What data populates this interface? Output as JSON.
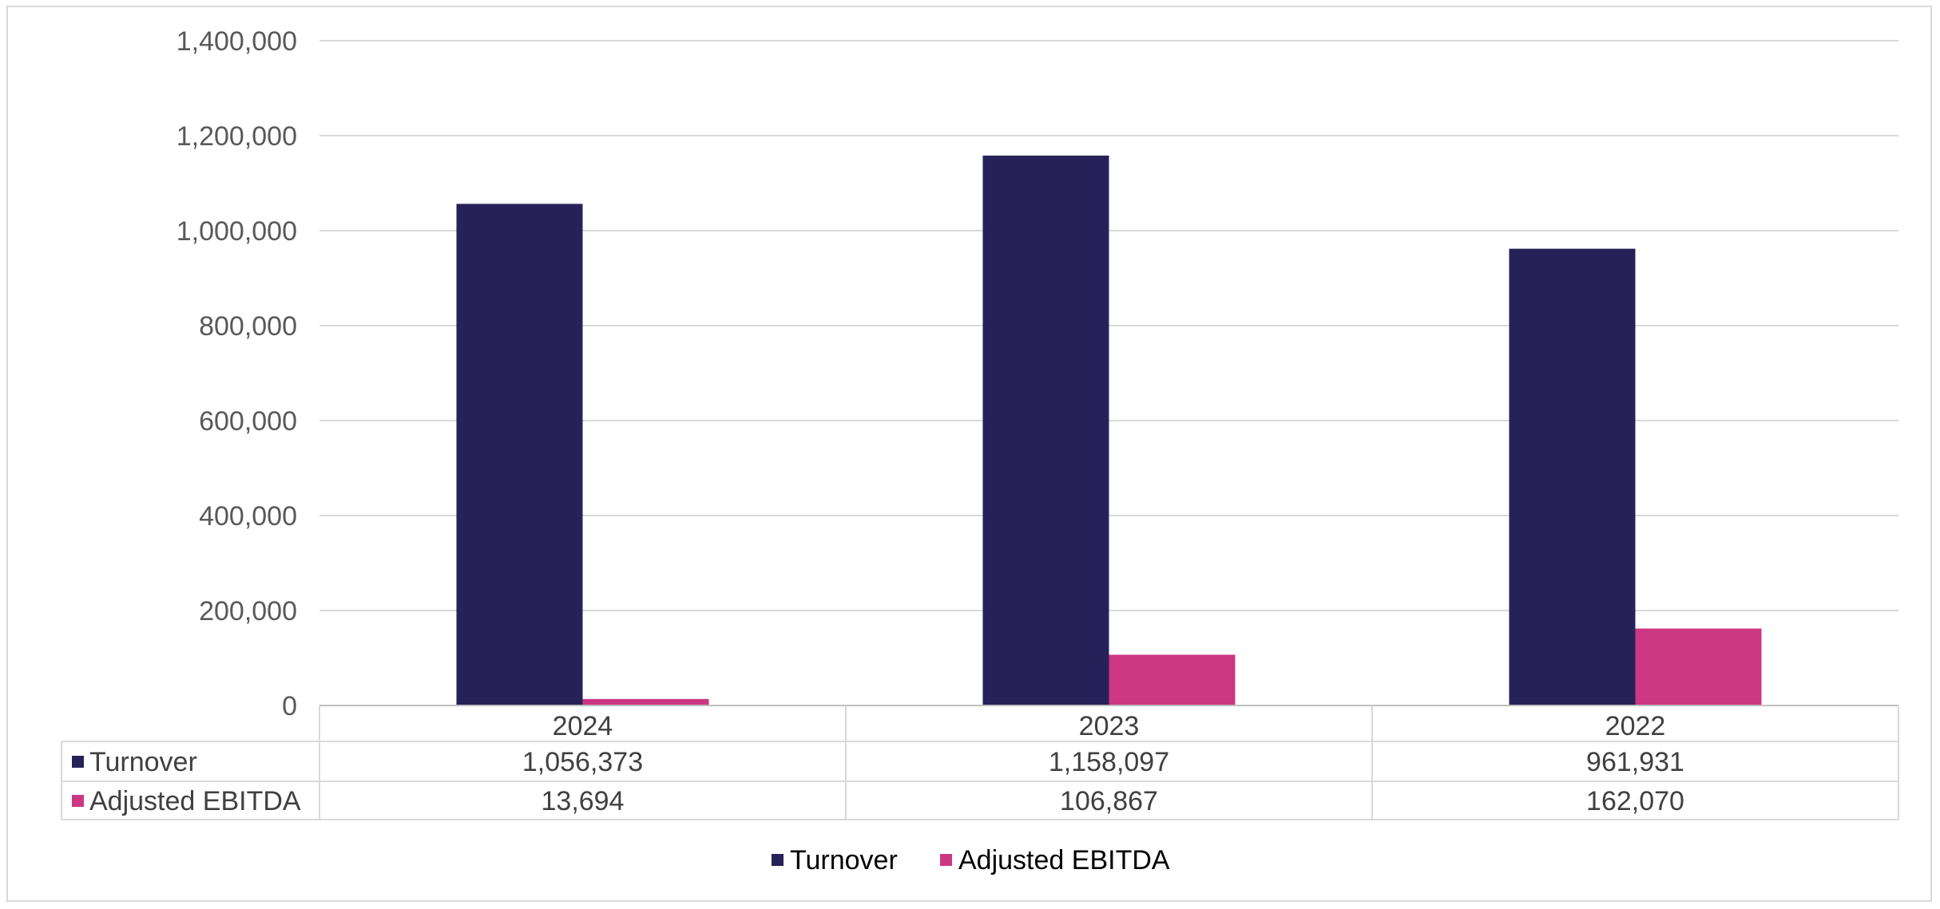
{
  "chart_data": {
    "type": "bar",
    "title": "",
    "xlabel": "",
    "ylabel": "",
    "categories": [
      "2024",
      "2023",
      "2022"
    ],
    "ylim": [
      0,
      1400000
    ],
    "yticks": [
      0,
      200000,
      400000,
      600000,
      800000,
      1000000,
      1200000,
      1400000
    ],
    "ytick_labels": [
      "0",
      "200,000",
      "400,000",
      "600,000",
      "800,000",
      "1,000,000",
      "1,200,000",
      "1,400,000"
    ],
    "grid": true,
    "legend_position": "bottom",
    "data_table": true,
    "series": [
      {
        "name": "Turnover",
        "color": "#262259",
        "values": [
          1056373,
          1158097,
          961931
        ],
        "value_labels": [
          "1,056,373",
          "1,158,097",
          "961,931"
        ]
      },
      {
        "name": "Adjusted EBITDA",
        "color": "#cc3782",
        "values": [
          13694,
          106867,
          162070
        ],
        "value_labels": [
          "13,694",
          "106,867",
          "162,070"
        ]
      }
    ]
  }
}
